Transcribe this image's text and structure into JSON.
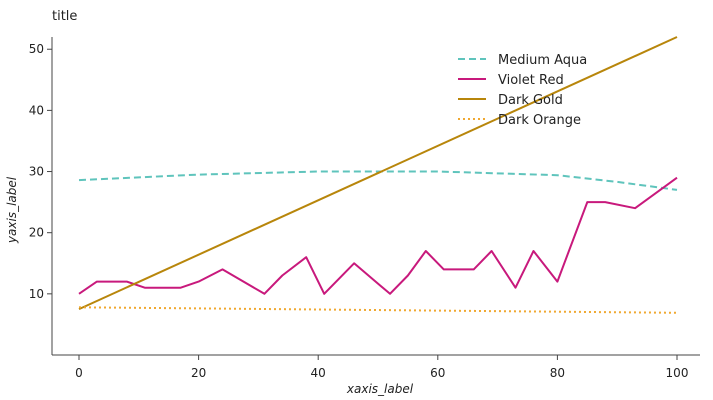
{
  "chart_data": {
    "type": "line",
    "title": "title",
    "xlabel": "xaxis_label",
    "ylabel": "yaxis_label",
    "xlim": [
      0,
      100
    ],
    "ylim": [
      0,
      52
    ],
    "xticks": [
      0,
      20,
      40,
      60,
      80,
      100
    ],
    "yticks": [
      10,
      20,
      30,
      40,
      50
    ],
    "grid": false,
    "legend": "top-right",
    "series": [
      {
        "name": "Medium Aqua",
        "color": "#5fc4bc",
        "dash": "dashed",
        "x": [
          0,
          20,
          40,
          60,
          80,
          90,
          100
        ],
        "y": [
          28.6,
          29.5,
          30.0,
          30.0,
          29.4,
          28.3,
          27.0
        ]
      },
      {
        "name": "Violet Red",
        "color": "#c8197c",
        "dash": "solid",
        "x": [
          0,
          3,
          8,
          11,
          17,
          20,
          24,
          31,
          34,
          38,
          41,
          46,
          52,
          55,
          58,
          61,
          66,
          69,
          73,
          76,
          80,
          85,
          88,
          93,
          100
        ],
        "y": [
          10,
          12,
          12,
          11,
          11,
          12,
          14,
          10,
          13,
          16,
          10,
          15,
          10,
          13,
          17,
          14,
          14,
          17,
          11,
          17,
          12,
          25,
          25,
          24,
          29
        ]
      },
      {
        "name": "Dark Gold",
        "color": "#b8860b",
        "dash": "solid",
        "x": [
          0,
          100
        ],
        "y": [
          7.5,
          52.0
        ]
      },
      {
        "name": "Dark Orange",
        "color": "#f0a830",
        "dash": "dotted",
        "x": [
          0,
          100
        ],
        "y": [
          7.8,
          6.9
        ]
      }
    ]
  }
}
